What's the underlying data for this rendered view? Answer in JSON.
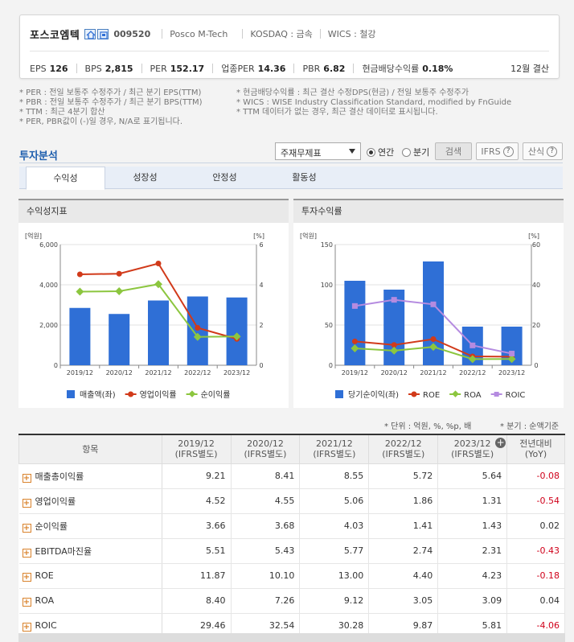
{
  "header": {
    "company": "포스코엠텍",
    "code": "009520",
    "english_name": "Posco M-Tech",
    "market": "KOSDAQ : 금속",
    "wics": "WICS : 철강",
    "metrics": [
      {
        "label": "EPS",
        "value": "126"
      },
      {
        "label": "BPS",
        "value": "2,815"
      },
      {
        "label": "PER",
        "value": "152.17"
      },
      {
        "label": "업종PER",
        "value": "14.36"
      },
      {
        "label": "PBR",
        "value": "6.82"
      },
      {
        "label": "현금배당수익률",
        "value": "0.18%"
      }
    ],
    "settlement": "12월 결산"
  },
  "notes_left": [
    "* PER : 전일 보통주 수정주가 / 최근 분기 EPS(TTM)",
    "* PBR : 전일 보통주 수정주가 / 최근 분기 BPS(TTM)",
    "* TTM : 최근 4분기 합산",
    "* PER, PBR값이 (-)일 경우, N/A로 표기됩니다."
  ],
  "notes_right": [
    "* 현금배당수익률 : 최근 결산 수정DPS(현금) / 전일 보통주 수정주가",
    "* WICS : WISE Industry Classification Standard, modified by FnGuide",
    "* TTM 데이터가 없는 경우, 최근 결산 데이터로 표시됩니다."
  ],
  "analysis": {
    "title": "투자분석",
    "select_value": "주재무제표",
    "radio_annual": "연간",
    "radio_quarter": "분기",
    "search_label": "검색",
    "ifrs_label": "IFRS",
    "formula_label": "산식",
    "tabs": [
      "수익성",
      "성장성",
      "안정성",
      "활동성"
    ]
  },
  "chart_left_title": "수익성지표",
  "chart_right_title": "투자수익률",
  "chart_data": [
    {
      "type": "bar",
      "categories": [
        "2019/12",
        "2020/12",
        "2021/12",
        "2022/12",
        "2023/12"
      ],
      "left_unit": "[억원]",
      "right_unit": "[%]",
      "left_ticks": [
        "0",
        "2,000",
        "4,000",
        "6,000"
      ],
      "right_ticks": [
        "0",
        "2",
        "4",
        "6"
      ],
      "left_range": [
        0,
        6000
      ],
      "right_range": [
        0,
        6
      ],
      "series": [
        {
          "name": "매출액(좌)",
          "kind": "bar",
          "axis": "left",
          "color": "#2f6fd6",
          "values": [
            2850,
            2550,
            3220,
            3420,
            3370
          ]
        },
        {
          "name": "영업이익률",
          "kind": "line",
          "axis": "right",
          "color": "#d13a1a",
          "values": [
            4.52,
            4.55,
            5.06,
            1.86,
            1.31
          ]
        },
        {
          "name": "순이익률",
          "kind": "line",
          "axis": "right",
          "color": "#8cc63f",
          "values": [
            3.66,
            3.68,
            4.03,
            1.41,
            1.43
          ]
        }
      ]
    },
    {
      "type": "bar",
      "categories": [
        "2019/12",
        "2020/12",
        "2021/12",
        "2022/12",
        "2023/12"
      ],
      "left_unit": "[억원]",
      "right_unit": "[%]",
      "left_ticks": [
        "0",
        "50",
        "100",
        "150"
      ],
      "right_ticks": [
        "0",
        "20",
        "40",
        "60"
      ],
      "left_range": [
        0,
        150
      ],
      "right_range": [
        0,
        60
      ],
      "series": [
        {
          "name": "당기순이익(좌)",
          "kind": "bar",
          "axis": "left",
          "color": "#2f6fd6",
          "values": [
            105,
            94,
            129,
            48,
            48
          ]
        },
        {
          "name": "ROE",
          "kind": "line",
          "axis": "right",
          "color": "#d13a1a",
          "values": [
            11.87,
            10.1,
            13.0,
            4.4,
            4.23
          ]
        },
        {
          "name": "ROA",
          "kind": "line",
          "axis": "right",
          "color": "#8cc63f",
          "values": [
            8.4,
            7.26,
            9.12,
            3.05,
            3.09
          ]
        },
        {
          "name": "ROIC",
          "kind": "line",
          "axis": "right",
          "color": "#b58be0",
          "values": [
            29.46,
            32.54,
            30.28,
            9.87,
            5.81
          ]
        }
      ]
    }
  ],
  "units_note": "* 단위 : 억원, %, %p, 배",
  "basis_note": "* 분기 : 순액기준",
  "table": {
    "headers": [
      {
        "a": "항목",
        "b": ""
      },
      {
        "a": "2019/12",
        "b": "(IFRS별도)"
      },
      {
        "a": "2020/12",
        "b": "(IFRS별도)"
      },
      {
        "a": "2021/12",
        "b": "(IFRS별도)"
      },
      {
        "a": "2022/12",
        "b": "(IFRS별도)"
      },
      {
        "a": "2023/12",
        "b": "(IFRS별도)"
      },
      {
        "a": "전년대비",
        "b": "(YoY)"
      }
    ],
    "rows": [
      {
        "name": "매출총이익률",
        "values": [
          "9.21",
          "8.41",
          "8.55",
          "5.72",
          "5.64"
        ],
        "yoy": "-0.08",
        "yoy_negative": true
      },
      {
        "name": "영업이익률",
        "values": [
          "4.52",
          "4.55",
          "5.06",
          "1.86",
          "1.31"
        ],
        "yoy": "-0.54",
        "yoy_negative": true
      },
      {
        "name": "순이익률",
        "values": [
          "3.66",
          "3.68",
          "4.03",
          "1.41",
          "1.43"
        ],
        "yoy": "0.02",
        "yoy_negative": false
      },
      {
        "name": "EBITDA마진율",
        "values": [
          "5.51",
          "5.43",
          "5.77",
          "2.74",
          "2.31"
        ],
        "yoy": "-0.43",
        "yoy_negative": true
      },
      {
        "name": "ROE",
        "values": [
          "11.87",
          "10.10",
          "13.00",
          "4.40",
          "4.23"
        ],
        "yoy": "-0.18",
        "yoy_negative": true
      },
      {
        "name": "ROA",
        "values": [
          "8.40",
          "7.26",
          "9.12",
          "3.05",
          "3.09"
        ],
        "yoy": "0.04",
        "yoy_negative": false
      },
      {
        "name": "ROIC",
        "values": [
          "29.46",
          "32.54",
          "30.28",
          "9.87",
          "5.81"
        ],
        "yoy": "-4.06",
        "yoy_negative": true
      }
    ]
  }
}
